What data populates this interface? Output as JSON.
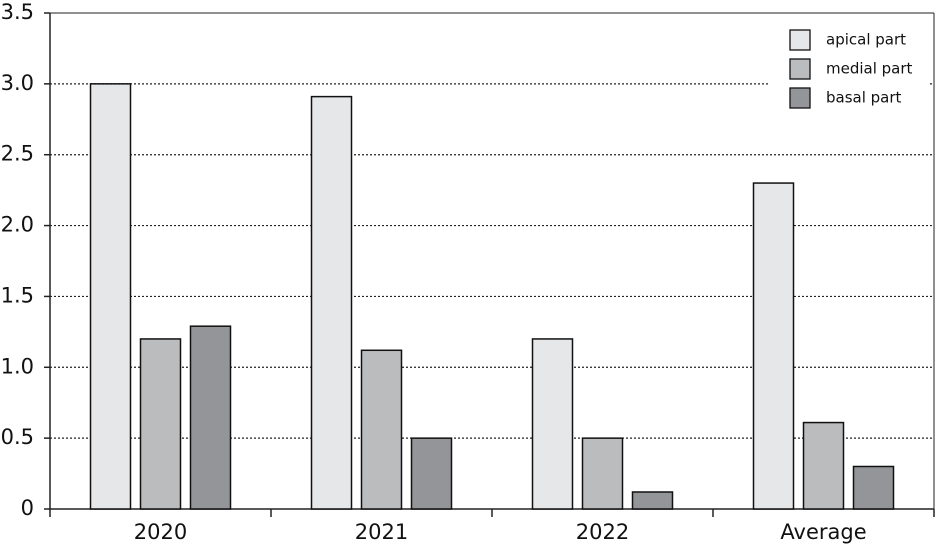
{
  "chart_data": {
    "type": "bar",
    "categories": [
      "2020",
      "2021",
      "2022",
      "Average"
    ],
    "series": [
      {
        "name": "apical part",
        "color": "#e6e7e9",
        "values": [
          3.0,
          2.91,
          1.2,
          2.3
        ]
      },
      {
        "name": "medial part",
        "color": "#bbbcbe",
        "values": [
          1.2,
          1.12,
          0.5,
          0.61
        ]
      },
      {
        "name": "basal part",
        "color": "#939598",
        "values": [
          1.29,
          0.5,
          0.12,
          0.3
        ]
      }
    ],
    "ylim": [
      0,
      3.5
    ],
    "yticks": [
      0,
      0.5,
      {
        "value": 1,
        "label": "1.0"
      },
      1.5,
      {
        "value": 2,
        "label": "2.0"
      },
      2.5,
      {
        "value": 3,
        "label": "3.0"
      },
      3.5
    ],
    "grid": true,
    "legend": "upper right"
  }
}
